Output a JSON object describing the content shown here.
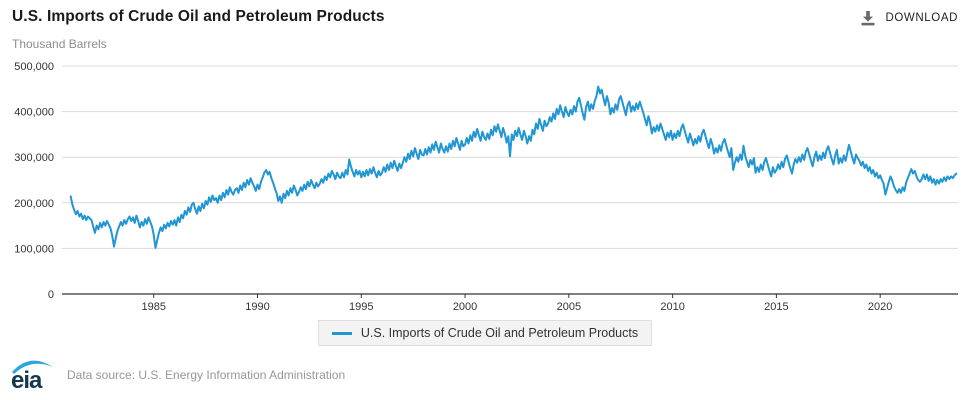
{
  "header": {
    "title": "U.S. Imports of Crude Oil and Petroleum Products",
    "download_label": "DOWNLOAD"
  },
  "chart": {
    "unit_label": "Thousand Barrels"
  },
  "legend": {
    "series_label": "U.S. Imports of Crude Oil and Petroleum Products"
  },
  "footer": {
    "logo_text": "eia",
    "source": "Data source: U.S. Energy Information Administration"
  },
  "chart_data": {
    "type": "line",
    "title": "U.S. Imports of Crude Oil and Petroleum Products",
    "ylabel": "Thousand Barrels",
    "xlabel": "",
    "ylim": [
      0,
      500000
    ],
    "xlim": [
      1980.58,
      2023.75
    ],
    "grid": "horizontal",
    "legend_position": "bottom-center",
    "line_color": "#2196d3",
    "grid_color": "#d9d9d9",
    "axis_color": "#333333",
    "y_ticks": [
      0,
      100000,
      200000,
      300000,
      400000,
      500000
    ],
    "y_tick_labels": [
      "0",
      "100,000",
      "200,000",
      "300,000",
      "400,000",
      "500,000"
    ],
    "x_ticks": [
      1985,
      1990,
      1995,
      2000,
      2005,
      2010,
      2015,
      2020
    ],
    "series": [
      {
        "name": "U.S. Imports of Crude Oil and Petroleum Products",
        "frequency": "monthly",
        "start_year": 1981,
        "start_month": 1,
        "values": [
          214000,
          196000,
          184000,
          175000,
          182000,
          170000,
          176000,
          164000,
          172000,
          162000,
          170000,
          166000,
          162000,
          148000,
          134000,
          150000,
          142000,
          156000,
          146000,
          158000,
          150000,
          160000,
          152000,
          144000,
          128000,
          104000,
          122000,
          138000,
          148000,
          158000,
          150000,
          162000,
          154000,
          164000,
          170000,
          160000,
          168000,
          156000,
          172000,
          160000,
          146000,
          158000,
          150000,
          164000,
          154000,
          168000,
          158000,
          148000,
          130000,
          101000,
          118000,
          134000,
          146000,
          138000,
          152000,
          144000,
          156000,
          148000,
          160000,
          152000,
          162000,
          150000,
          168000,
          158000,
          174000,
          166000,
          182000,
          174000,
          190000,
          180000,
          196000,
          200000,
          186000,
          176000,
          192000,
          182000,
          198000,
          188000,
          204000,
          196000,
          212000,
          202000,
          216000,
          206000,
          210000,
          200000,
          216000,
          206000,
          222000,
          212000,
          228000,
          218000,
          234000,
          224000,
          218000,
          228000,
          232000,
          222000,
          238000,
          228000,
          244000,
          234000,
          250000,
          240000,
          254000,
          244000,
          236000,
          226000,
          240000,
          230000,
          246000,
          256000,
          266000,
          272000,
          262000,
          268000,
          254000,
          244000,
          232000,
          222000,
          204000,
          214000,
          200000,
          220000,
          210000,
          226000,
          216000,
          232000,
          222000,
          238000,
          228000,
          216000,
          224000,
          234000,
          226000,
          240000,
          230000,
          246000,
          236000,
          250000,
          240000,
          232000,
          244000,
          236000,
          242000,
          252000,
          244000,
          258000,
          250000,
          264000,
          256000,
          270000,
          262000,
          252000,
          266000,
          258000,
          254000,
          266000,
          256000,
          272000,
          262000,
          295000,
          280000,
          268000,
          258000,
          272000,
          262000,
          270000,
          256000,
          268000,
          258000,
          272000,
          260000,
          274000,
          264000,
          278000,
          266000,
          256000,
          270000,
          260000,
          266000,
          278000,
          268000,
          284000,
          272000,
          288000,
          276000,
          292000,
          280000,
          270000,
          286000,
          276000,
          288000,
          300000,
          290000,
          308000,
          296000,
          314000,
          302000,
          320000,
          308000,
          296000,
          316000,
          306000,
          304000,
          318000,
          306000,
          322000,
          310000,
          328000,
          316000,
          334000,
          322000,
          310000,
          330000,
          318000,
          310000,
          324000,
          312000,
          330000,
          318000,
          336000,
          324000,
          342000,
          330000,
          316000,
          336000,
          324000,
          328000,
          342000,
          330000,
          348000,
          336000,
          356000,
          344000,
          362000,
          348000,
          336000,
          356000,
          344000,
          338000,
          352000,
          340000,
          360000,
          348000,
          368000,
          356000,
          372000,
          358000,
          344000,
          364000,
          352000,
          332000,
          346000,
          302000,
          350000,
          338000,
          358000,
          346000,
          364000,
          350000,
          338000,
          358000,
          346000,
          330000,
          346000,
          336000,
          360000,
          350000,
          374000,
          362000,
          384000,
          370000,
          358000,
          380000,
          368000,
          374000,
          388000,
          378000,
          396000,
          384000,
          406000,
          394000,
          414000,
          400000,
          388000,
          410000,
          398000,
          390000,
          404000,
          394000,
          412000,
          400000,
          422000,
          430000,
          414000,
          396000,
          382000,
          410000,
          422000,
          402000,
          416000,
          406000,
          424000,
          434000,
          455000,
          440000,
          448000,
          430000,
          414000,
          434000,
          420000,
          394000,
          408000,
          398000,
          416000,
          404000,
          426000,
          434000,
          420000,
          406000,
          392000,
          414000,
          422000,
          400000,
          412000,
          402000,
          418000,
          406000,
          422000,
          410000,
          398000,
          384000,
          370000,
          390000,
          376000,
          352000,
          366000,
          356000,
          370000,
          358000,
          374000,
          362000,
          350000,
          338000,
          354000,
          344000,
          358000,
          338000,
          352000,
          342000,
          358000,
          346000,
          364000,
          372000,
          358000,
          344000,
          332000,
          352000,
          340000,
          326000,
          340000,
          330000,
          346000,
          334000,
          352000,
          360000,
          346000,
          332000,
          320000,
          340000,
          328000,
          308000,
          320000,
          310000,
          326000,
          314000,
          332000,
          340000,
          326000,
          312000,
          300000,
          320000,
          272000,
          288000,
          300000,
          290000,
          306000,
          294000,
          325000,
          302000,
          290000,
          278000,
          294000,
          284000,
          298000,
          266000,
          278000,
          268000,
          284000,
          272000,
          290000,
          298000,
          284000,
          270000,
          258000,
          278000,
          266000,
          272000,
          284000,
          274000,
          290000,
          278000,
          296000,
          304000,
          290000,
          276000,
          264000,
          284000,
          296000,
          288000,
          300000,
          290000,
          306000,
          294000,
          312000,
          320000,
          306000,
          292000,
          280000,
          300000,
          312000,
          292000,
          304000,
          294000,
          310000,
          298000,
          316000,
          324000,
          310000,
          296000,
          284000,
          304000,
          316000,
          286000,
          298000,
          288000,
          304000,
          292000,
          310000,
          327000,
          312000,
          298000,
          286000,
          306000,
          298000,
          292000,
          282000,
          290000,
          276000,
          284000,
          270000,
          278000,
          264000,
          272000,
          258000,
          266000,
          254000,
          260000,
          250000,
          242000,
          218000,
          232000,
          246000,
          258000,
          248000,
          236000,
          228000,
          222000,
          230000,
          222000,
          234000,
          226000,
          244000,
          254000,
          264000,
          274000,
          264000,
          270000,
          258000,
          250000,
          246000,
          252000,
          262000,
          252000,
          262000,
          248000,
          258000,
          244000,
          252000,
          240000,
          250000,
          242000,
          252000,
          246000,
          256000,
          248000,
          258000,
          252000,
          258000,
          254000,
          260000,
          264000
        ]
      }
    ]
  }
}
